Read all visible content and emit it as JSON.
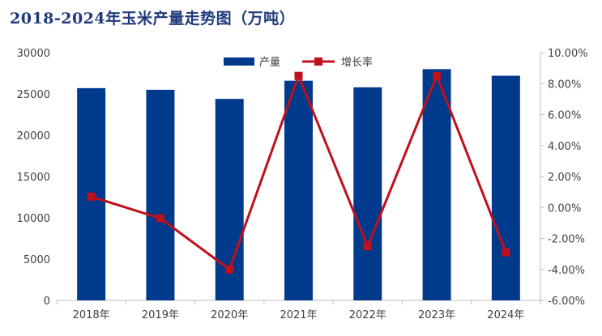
{
  "chart_data": {
    "type": "bar",
    "title": "2018-2024年玉米产量走势图（万吨）",
    "categories": [
      "2018年",
      "2019年",
      "2020年",
      "2021年",
      "2022年",
      "2023年",
      "2024年"
    ],
    "series": [
      {
        "name": "产量",
        "type": "bar",
        "axis": "left",
        "values": [
          25700,
          25500,
          24400,
          26600,
          25800,
          28000,
          27200
        ]
      },
      {
        "name": "增长率",
        "type": "line",
        "axis": "right",
        "values": [
          0.7,
          -0.7,
          -4.0,
          8.5,
          -2.5,
          8.5,
          -2.9
        ]
      }
    ],
    "y_left": {
      "min": 0,
      "max": 30000,
      "ticks": [
        0,
        5000,
        10000,
        15000,
        20000,
        25000,
        30000
      ],
      "tick_labels": [
        "0",
        "5000",
        "10000",
        "15000",
        "20000",
        "25000",
        "30000"
      ]
    },
    "y_right": {
      "min": -6,
      "max": 10,
      "ticks": [
        -6,
        -4,
        -2,
        0,
        2,
        4,
        6,
        8,
        10
      ],
      "tick_labels": [
        "-6.00%",
        "-4.00%",
        "-2.00%",
        "0.00%",
        "2.00%",
        "4.00%",
        "6.00%",
        "8.00%",
        "10.00%"
      ]
    },
    "legend_position": "top-right",
    "grid": false,
    "colors": {
      "bar": "#003a8c",
      "line": "#c0101a"
    }
  }
}
